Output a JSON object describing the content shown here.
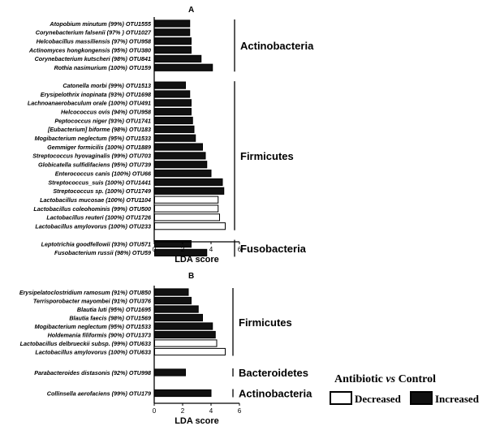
{
  "chart_data": [
    {
      "type": "bar",
      "panel_label": "A",
      "xlabel": "LDA score",
      "xlim": [
        0,
        6
      ],
      "xticks": [
        0,
        2,
        4,
        6
      ],
      "groups": [
        {
          "name": "Actinobacteria",
          "bars": [
            {
              "label": "Atopobium minutum (99%) OTU1555",
              "value": 2.5,
              "direction": "Increased"
            },
            {
              "label": "Corynebacterium falsenii (97% ) OTU1027",
              "value": 2.5,
              "direction": "Increased"
            },
            {
              "label": "Helcobacillus massiliensis (97%) OTU958",
              "value": 2.6,
              "direction": "Increased"
            },
            {
              "label": "Actinomyces hongkongensis (95%) OTU380",
              "value": 2.6,
              "direction": "Increased"
            },
            {
              "label": "Corynebacterium kutscheri (98%) OTU841",
              "value": 3.3,
              "direction": "Increased"
            },
            {
              "label": "Rothia nasimurium (100%) OTU159",
              "value": 4.1,
              "direction": "Increased"
            }
          ]
        },
        {
          "name": "Firmicutes",
          "bars": [
            {
              "label": "Catonella morbi (99%) OTU1513",
              "value": 2.2,
              "direction": "Increased"
            },
            {
              "label": "Erysipelothrix inopinata (93%) OTU1698",
              "value": 2.5,
              "direction": "Increased"
            },
            {
              "label": "Lachnoanaerobaculum orale (100%) OTU491",
              "value": 2.6,
              "direction": "Increased"
            },
            {
              "label": "Helcococcus ovis (94%) OTU958",
              "value": 2.6,
              "direction": "Increased"
            },
            {
              "label": "Peptococcus niger (93%) OTU1741",
              "value": 2.7,
              "direction": "Increased"
            },
            {
              "label": "[Eubacterium] biforme (98%) OTU183",
              "value": 2.8,
              "direction": "Increased"
            },
            {
              "label": "Mogibacterium neglectum (95%) OTU1533",
              "value": 2.9,
              "direction": "Increased"
            },
            {
              "label": "Gemmiger formicilis (100%) OTU1889",
              "value": 3.4,
              "direction": "Increased"
            },
            {
              "label": "Streptococcus hyovaginalis (99%) OTU703",
              "value": 3.6,
              "direction": "Increased"
            },
            {
              "label": "Globicatella sulfidifaciens (95%) OTU739",
              "value": 3.7,
              "direction": "Increased"
            },
            {
              "label": "Enterococcus canis (100%) OTU66",
              "value": 4.0,
              "direction": "Increased"
            },
            {
              "label": "Streptococcus_suis (100%) OTU1441",
              "value": 4.8,
              "direction": "Increased"
            },
            {
              "label": "Streptococcus sp. (100%) OTU1749",
              "value": 4.9,
              "direction": "Increased"
            },
            {
              "label": "Lactobacillus mucosae (100%) OTU1104",
              "value": 4.5,
              "direction": "Decreased"
            },
            {
              "label": "Lactobacillus coleohominis (99%) OTU500",
              "value": 4.5,
              "direction": "Decreased"
            },
            {
              "label": "Lactobacillus reuteri (100%) OTU1726",
              "value": 4.6,
              "direction": "Decreased"
            },
            {
              "label": "Lactobacillus amylovorus (100%) OTU233",
              "value": 5.0,
              "direction": "Decreased"
            }
          ]
        },
        {
          "name": "Fusobacteria",
          "bars": [
            {
              "label": "Leptotrichia goodfellowii (93%) OTU571",
              "value": 2.6,
              "direction": "Increased"
            },
            {
              "label": "Fusobacterium russii (98%) OTU59",
              "value": 3.7,
              "direction": "Increased"
            }
          ]
        }
      ]
    },
    {
      "type": "bar",
      "panel_label": "B",
      "xlabel": "LDA score",
      "xlim": [
        0,
        6
      ],
      "xticks": [
        0,
        2,
        4,
        6
      ],
      "groups": [
        {
          "name": "Firmicutes",
          "bars": [
            {
              "label": "Erysipelatoclostridium ramosum (91%) OTU850",
              "value": 2.4,
              "direction": "Increased"
            },
            {
              "label": "Terrisporobacter mayombei (91%) OTU376",
              "value": 2.6,
              "direction": "Increased"
            },
            {
              "label": "Blautia luti (95%) OTU1695",
              "value": 3.1,
              "direction": "Increased"
            },
            {
              "label": "Blautia faecis (98%) OTU1569",
              "value": 3.4,
              "direction": "Increased"
            },
            {
              "label": "Mogibacterium neglectum (95%) OTU1533",
              "value": 4.1,
              "direction": "Increased"
            },
            {
              "label": "Holdemania filiformis (90%) OTU1373",
              "value": 4.3,
              "direction": "Increased"
            },
            {
              "label": "Lactobacillus delbrueckii subsp. (99%) OTU633",
              "value": 4.4,
              "direction": "Decreased"
            },
            {
              "label": "Lactobacillus amylovorus (100%) OTU633",
              "value": 5.0,
              "direction": "Decreased"
            }
          ]
        },
        {
          "name": "Bacteroidetes",
          "bars": [
            {
              "label": "Parabacteroides distasonis (92%) OTU998",
              "value": 2.2,
              "direction": "Increased"
            }
          ]
        },
        {
          "name": "Actinobacteria",
          "bars": [
            {
              "label": "Collinsella aerofaciens (99%) OTU179",
              "value": 4.0,
              "direction": "Increased"
            }
          ]
        }
      ]
    }
  ],
  "legend": {
    "title_part1": "Antibiotic ",
    "title_vs": "vs",
    "title_part2": " Control",
    "decreased_label": "Decreased",
    "increased_label": "Increased",
    "colors": {
      "increased": "#111111",
      "decreased": "#ffffff",
      "stroke": "#000000"
    }
  }
}
